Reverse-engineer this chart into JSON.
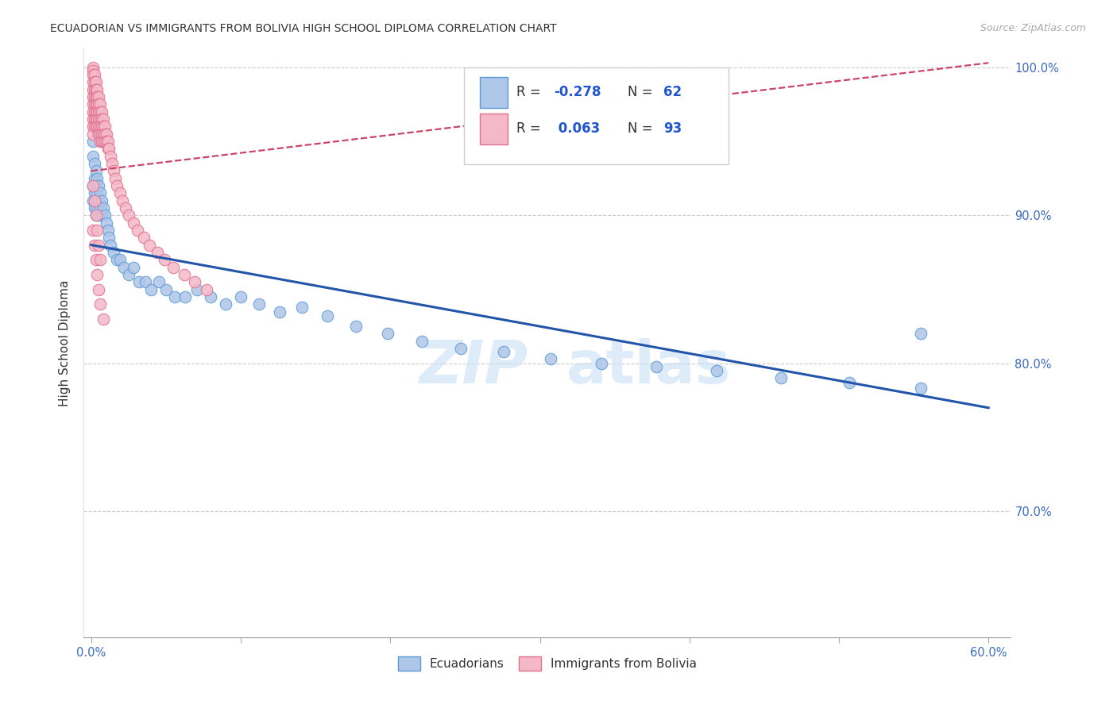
{
  "title": "ECUADORIAN VS IMMIGRANTS FROM BOLIVIA HIGH SCHOOL DIPLOMA CORRELATION CHART",
  "source": "Source: ZipAtlas.com",
  "ylabel": "High School Diploma",
  "xlim": [
    -0.005,
    0.615
  ],
  "ylim": [
    0.615,
    1.012
  ],
  "xticks": [
    0.0,
    0.1,
    0.2,
    0.3,
    0.4,
    0.5,
    0.6
  ],
  "xticklabels_edge": [
    "0.0%",
    "",
    "",
    "",
    "",
    "",
    "60.0%"
  ],
  "yticks": [
    0.7,
    0.8,
    0.9,
    1.0
  ],
  "yticklabels": [
    "70.0%",
    "80.0%",
    "90.0%",
    "100.0%"
  ],
  "ecuadorian_color": "#aec6e8",
  "bolivia_color": "#f4b8c8",
  "ecuadorian_edge": "#5b9bd5",
  "bolivia_edge": "#e07090",
  "trend_blue": "#2255aa",
  "trend_pink": "#cc4466",
  "legend_label_blue": "Ecuadorians",
  "legend_label_pink": "Immigrants from Bolivia",
  "watermark_top": "ZIP",
  "watermark_bot": "atlas",
  "ecu_trend": [
    0.0,
    0.6,
    0.88,
    0.77
  ],
  "bol_trend": [
    0.0,
    0.6,
    0.93,
    1.003
  ],
  "ecu_x": [
    0.001,
    0.001,
    0.001,
    0.001,
    0.002,
    0.002,
    0.002,
    0.002,
    0.003,
    0.003,
    0.003,
    0.003,
    0.004,
    0.004,
    0.004,
    0.005,
    0.005,
    0.005,
    0.006,
    0.006,
    0.007,
    0.007,
    0.008,
    0.009,
    0.01,
    0.011,
    0.012,
    0.013,
    0.015,
    0.017,
    0.019,
    0.022,
    0.025,
    0.028,
    0.032,
    0.036,
    0.04,
    0.045,
    0.05,
    0.056,
    0.063,
    0.071,
    0.08,
    0.09,
    0.1,
    0.112,
    0.126,
    0.141,
    0.158,
    0.177,
    0.198,
    0.221,
    0.247,
    0.276,
    0.307,
    0.341,
    0.378,
    0.418,
    0.461,
    0.507,
    0.555,
    0.555
  ],
  "ecu_y": [
    0.94,
    0.95,
    0.92,
    0.91,
    0.935,
    0.925,
    0.915,
    0.905,
    0.93,
    0.92,
    0.91,
    0.9,
    0.925,
    0.915,
    0.905,
    0.92,
    0.91,
    0.9,
    0.915,
    0.905,
    0.91,
    0.9,
    0.905,
    0.9,
    0.895,
    0.89,
    0.885,
    0.88,
    0.875,
    0.87,
    0.87,
    0.865,
    0.86,
    0.865,
    0.855,
    0.855,
    0.85,
    0.855,
    0.85,
    0.845,
    0.845,
    0.85,
    0.845,
    0.84,
    0.845,
    0.84,
    0.835,
    0.838,
    0.832,
    0.825,
    0.82,
    0.815,
    0.81,
    0.808,
    0.803,
    0.8,
    0.798,
    0.795,
    0.79,
    0.787,
    0.783,
    0.82
  ],
  "bol_x": [
    0.001,
    0.001,
    0.001,
    0.001,
    0.001,
    0.001,
    0.001,
    0.001,
    0.001,
    0.001,
    0.001,
    0.002,
    0.002,
    0.002,
    0.002,
    0.002,
    0.002,
    0.002,
    0.002,
    0.003,
    0.003,
    0.003,
    0.003,
    0.003,
    0.003,
    0.003,
    0.004,
    0.004,
    0.004,
    0.004,
    0.004,
    0.004,
    0.005,
    0.005,
    0.005,
    0.005,
    0.005,
    0.005,
    0.006,
    0.006,
    0.006,
    0.006,
    0.006,
    0.006,
    0.007,
    0.007,
    0.007,
    0.007,
    0.007,
    0.008,
    0.008,
    0.008,
    0.008,
    0.009,
    0.009,
    0.009,
    0.01,
    0.01,
    0.011,
    0.011,
    0.012,
    0.013,
    0.014,
    0.015,
    0.016,
    0.017,
    0.019,
    0.021,
    0.023,
    0.025,
    0.028,
    0.031,
    0.035,
    0.039,
    0.044,
    0.049,
    0.055,
    0.062,
    0.069,
    0.077,
    0.001,
    0.001,
    0.002,
    0.002,
    0.003,
    0.003,
    0.004,
    0.004,
    0.005,
    0.005,
    0.006,
    0.006,
    0.008
  ],
  "bol_y": [
    1.0,
    0.998,
    0.995,
    0.99,
    0.985,
    0.98,
    0.975,
    0.97,
    0.965,
    0.96,
    0.955,
    0.995,
    0.99,
    0.985,
    0.98,
    0.975,
    0.97,
    0.965,
    0.96,
    0.99,
    0.985,
    0.98,
    0.975,
    0.97,
    0.965,
    0.96,
    0.985,
    0.98,
    0.975,
    0.97,
    0.965,
    0.96,
    0.98,
    0.975,
    0.97,
    0.965,
    0.96,
    0.955,
    0.975,
    0.97,
    0.965,
    0.96,
    0.955,
    0.95,
    0.97,
    0.965,
    0.96,
    0.955,
    0.95,
    0.965,
    0.96,
    0.955,
    0.95,
    0.96,
    0.955,
    0.95,
    0.955,
    0.95,
    0.95,
    0.945,
    0.945,
    0.94,
    0.935,
    0.93,
    0.925,
    0.92,
    0.915,
    0.91,
    0.905,
    0.9,
    0.895,
    0.89,
    0.885,
    0.88,
    0.875,
    0.87,
    0.865,
    0.86,
    0.855,
    0.85,
    0.92,
    0.89,
    0.91,
    0.88,
    0.9,
    0.87,
    0.89,
    0.86,
    0.88,
    0.85,
    0.87,
    0.84,
    0.83
  ]
}
